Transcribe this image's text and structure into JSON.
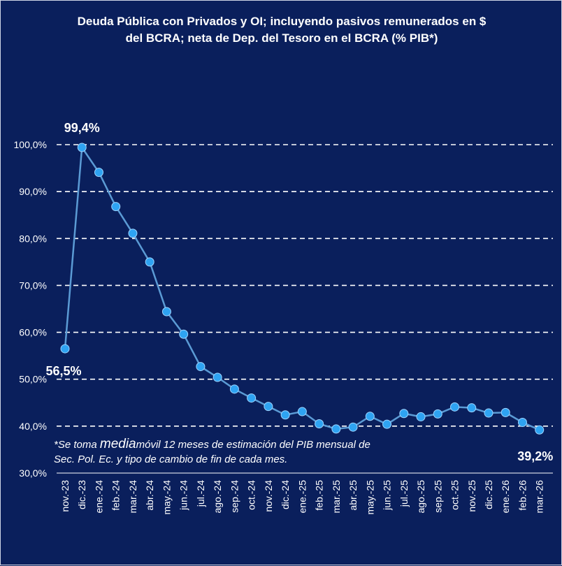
{
  "chart_data": {
    "type": "line",
    "title_line1": "Deuda Pública con Privados y OI; incluyendo pasivos remunerados en $",
    "title_line2": "del BCRA; neta de Dep. del Tesoro en el BCRA (% PIB*)",
    "categories": [
      "nov.-23",
      "dic.-23",
      "ene.-24",
      "feb.-24",
      "mar.-24",
      "abr.-24",
      "may.-24",
      "jun.-24",
      "jul.-24",
      "ago.-24",
      "sep.-24",
      "oct.-24",
      "nov.-24",
      "dic.-24",
      "ene.-25",
      "feb.-25",
      "mar.-25",
      "abr.-25",
      "may.-25",
      "jun.-25",
      "jul.-25",
      "ago.-25",
      "sep.-25",
      "oct.-25",
      "nov.-25",
      "dic.-25",
      "ene.-26",
      "feb.-26",
      "mar.-26"
    ],
    "values": [
      56.5,
      99.4,
      94.1,
      86.8,
      81.1,
      75.0,
      64.4,
      59.6,
      52.7,
      50.4,
      47.9,
      46.0,
      44.2,
      42.4,
      43.1,
      40.5,
      39.4,
      39.8,
      42.1,
      40.4,
      42.7,
      42.0,
      42.6,
      44.1,
      43.9,
      42.8,
      42.9,
      40.8,
      39.2
    ],
    "yticks": [
      "30,0%",
      "40,0%",
      "50,0%",
      "60,0%",
      "70,0%",
      "80,0%",
      "90,0%",
      "100,0%"
    ],
    "ylim": [
      30,
      100
    ],
    "labels": [
      {
        "index": 0,
        "text": "56,5%"
      },
      {
        "index": 1,
        "text": "99,4%"
      },
      {
        "index": 28,
        "text": "39,2%"
      }
    ],
    "note_part1": "*Se toma",
    "note_media": "media",
    "note_part2": "móvil 12 meses de estimación del PIB mensual de",
    "note_line2": "Sec. Pol. Ec. y tipo de cambio de fin de cada mes.",
    "colors": {
      "background": "#0a1f5c",
      "line": "#5b9bd5",
      "marker": "#2ea3f2",
      "grid": "#ffffff",
      "text": "#ffffff"
    }
  }
}
